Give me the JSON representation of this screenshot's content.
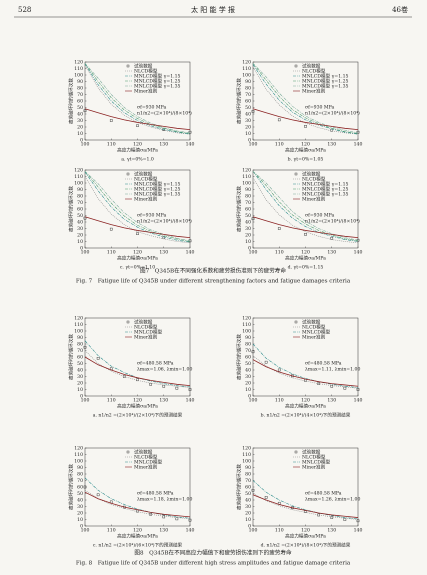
{
  "header": {
    "page": "528",
    "journal": "太 阳 能 学 报",
    "volume": "46卷"
  },
  "figure7": {
    "caption_cn": "图7　Q345B在不同强化系数和疲劳损伤准则下的疲劳寿命",
    "caption_en": "Fig. 7　Fatigue life of Q345B under different strengthening factors and fatigue damages criteria"
  },
  "figure8": {
    "caption_cn": "图8　Q345B在不同高应力幅值下和疲劳损伤准则下的疲劳寿命",
    "caption_en": "Fig. 8　Fatigue life of Q345B under different high stress amplitudes and fatigue damage criteria"
  },
  "chart_data": [
    {
      "type": "line",
      "caption": "a. γt=0%=1.0",
      "xlabel": "高应力幅值σa/MPa",
      "ylabel": "疲劳破坏时的循环次数",
      "xlim": [
        100,
        140
      ],
      "ylim": [
        0,
        120
      ],
      "xticks": [
        100,
        110,
        120,
        130,
        140
      ],
      "yticks": [
        0,
        10,
        20,
        30,
        40,
        50,
        60,
        70,
        80,
        90,
        100,
        110,
        120
      ],
      "x": [
        100,
        105,
        110,
        115,
        120,
        125,
        130,
        135,
        140
      ],
      "annotations": [
        "σf=930 MPa",
        "n1/n2=(2×10⁴)/(8×10⁴)"
      ],
      "series": [
        {
          "name": "试验数据",
          "color": "#222222",
          "style": "markers",
          "x": [
            100,
            110,
            120,
            130,
            140
          ],
          "values": [
            45,
            30,
            22,
            16,
            12
          ]
        },
        {
          "name": "NLCD模型",
          "color": "#8a8a8a",
          "style": "dotted",
          "values": [
            115,
            80,
            55,
            38,
            27,
            20,
            15,
            11,
            9
          ]
        },
        {
          "name": "MNLCD模型 γ=1.15",
          "color": "#2a8a8a",
          "style": "dashdot",
          "values": [
            117,
            85,
            60,
            42,
            30,
            22,
            16,
            12,
            9
          ]
        },
        {
          "name": "MNLCD模型 γ=1.25",
          "color": "#4a9a6a",
          "style": "dashdot",
          "values": [
            118,
            90,
            65,
            46,
            33,
            24,
            18,
            13,
            10
          ]
        },
        {
          "name": "MNLCD模型 γ=1.35",
          "color": "#7aaa9a",
          "style": "dashdot",
          "values": [
            118,
            95,
            70,
            50,
            36,
            26,
            19,
            14,
            11
          ]
        },
        {
          "name": "Miner准则",
          "color": "#8b2323",
          "style": "solid",
          "values": [
            48,
            42,
            36,
            31,
            27,
            24,
            21,
            18,
            16
          ]
        }
      ]
    },
    {
      "type": "line",
      "caption": "b. γt=0%=1.05",
      "xlabel": "高应力幅值σa/MPa",
      "ylabel": "疲劳破坏时的循环次数",
      "xlim": [
        100,
        140
      ],
      "ylim": [
        0,
        120
      ],
      "xticks": [
        100,
        110,
        120,
        130,
        140
      ],
      "yticks": [
        0,
        10,
        20,
        30,
        40,
        50,
        60,
        70,
        80,
        90,
        100,
        110,
        120
      ],
      "x": [
        100,
        105,
        110,
        115,
        120,
        125,
        130,
        135,
        140
      ],
      "annotations": [
        "σf=930 MPa",
        "n1/n2=(2×10⁴)/(8×10⁴)"
      ],
      "series": [
        {
          "name": "试验数据",
          "color": "#222222",
          "style": "markers",
          "x": [
            100,
            110,
            120,
            130,
            140
          ],
          "values": [
            44,
            31,
            21,
            15,
            12
          ]
        },
        {
          "name": "NLCD模型",
          "color": "#8a8a8a",
          "style": "dotted",
          "values": [
            112,
            78,
            54,
            37,
            26,
            19,
            14,
            11,
            9
          ]
        },
        {
          "name": "MNLCD模型 γ=1.15",
          "color": "#2a8a8a",
          "style": "dashdot",
          "values": [
            116,
            86,
            61,
            43,
            31,
            23,
            17,
            12,
            9
          ]
        },
        {
          "name": "MNLCD模型 γ=1.25",
          "color": "#4a9a6a",
          "style": "dashdot",
          "values": [
            118,
            92,
            67,
            47,
            34,
            25,
            18,
            13,
            10
          ]
        },
        {
          "name": "MNLCD模型 γ=1.35",
          "color": "#7aaa9a",
          "style": "dashdot",
          "values": [
            118,
            97,
            72,
            52,
            37,
            27,
            20,
            15,
            11
          ]
        },
        {
          "name": "Miner准则",
          "color": "#8b2323",
          "style": "solid",
          "values": [
            48,
            42,
            36,
            31,
            27,
            24,
            21,
            18,
            16
          ]
        }
      ]
    },
    {
      "type": "line",
      "caption": "c. γt=0%=1.10",
      "xlabel": "高应力幅值σa/MPa",
      "ylabel": "疲劳破坏时的循环次数",
      "xlim": [
        100,
        140
      ],
      "ylim": [
        0,
        120
      ],
      "xticks": [
        100,
        110,
        120,
        130,
        140
      ],
      "yticks": [
        0,
        10,
        20,
        30,
        40,
        50,
        60,
        70,
        80,
        90,
        100,
        110,
        120
      ],
      "x": [
        100,
        105,
        110,
        115,
        120,
        125,
        130,
        135,
        140
      ],
      "annotations": [
        "σf=930 MPa",
        "n1/n2=(2×10⁴)/(8×10⁴)"
      ],
      "series": [
        {
          "name": "试验数据",
          "color": "#222222",
          "style": "markers",
          "x": [
            100,
            110,
            120,
            130,
            140
          ],
          "values": [
            46,
            29,
            22,
            16,
            11
          ]
        },
        {
          "name": "NLCD模型",
          "color": "#8a8a8a",
          "style": "dotted",
          "values": [
            110,
            76,
            52,
            36,
            25,
            19,
            14,
            10,
            8
          ]
        },
        {
          "name": "MNLCD模型 γ=1.15",
          "color": "#2a8a8a",
          "style": "dashdot",
          "values": [
            117,
            88,
            63,
            44,
            32,
            23,
            17,
            12,
            9
          ]
        },
        {
          "name": "MNLCD模型 γ=1.25",
          "color": "#4a9a6a",
          "style": "dashdot",
          "values": [
            118,
            94,
            69,
            49,
            35,
            26,
            19,
            14,
            10
          ]
        },
        {
          "name": "MNLCD模型 γ=1.35",
          "color": "#7aaa9a",
          "style": "dashdot",
          "values": [
            118,
            99,
            75,
            54,
            39,
            28,
            21,
            15,
            11
          ]
        },
        {
          "name": "Miner准则",
          "color": "#8b2323",
          "style": "solid",
          "values": [
            48,
            42,
            36,
            31,
            27,
            24,
            21,
            18,
            16
          ]
        }
      ]
    },
    {
      "type": "line",
      "caption": "d. γt=0%=1.15",
      "xlabel": "高应力幅值σa/MPa",
      "ylabel": "疲劳破坏时的循环次数",
      "xlim": [
        100,
        140
      ],
      "ylim": [
        0,
        120
      ],
      "xticks": [
        100,
        110,
        120,
        130,
        140
      ],
      "yticks": [
        0,
        10,
        20,
        30,
        40,
        50,
        60,
        70,
        80,
        90,
        100,
        110,
        120
      ],
      "x": [
        100,
        105,
        110,
        115,
        120,
        125,
        130,
        135,
        140
      ],
      "annotations": [
        "σf=930 MPa",
        "n1/n2=(2×10⁴)/(8×10⁴)"
      ],
      "series": [
        {
          "name": "试验数据",
          "color": "#222222",
          "style": "markers",
          "x": [
            100,
            110,
            120,
            130,
            140
          ],
          "values": [
            45,
            30,
            21,
            15,
            12
          ]
        },
        {
          "name": "NLCD模型",
          "color": "#8a8a8a",
          "style": "dotted",
          "values": [
            108,
            74,
            51,
            35,
            25,
            18,
            13,
            10,
            8
          ]
        },
        {
          "name": "MNLCD模型 γ=1.15",
          "color": "#2a8a8a",
          "style": "dashdot",
          "values": [
            118,
            90,
            65,
            46,
            33,
            24,
            18,
            13,
            10
          ]
        },
        {
          "name": "MNLCD模型 γ=1.25",
          "color": "#4a9a6a",
          "style": "dashdot",
          "values": [
            118,
            96,
            71,
            51,
            37,
            27,
            20,
            14,
            11
          ]
        },
        {
          "name": "MNLCD模型 γ=1.35",
          "color": "#7aaa9a",
          "style": "dashdot",
          "values": [
            118,
            100,
            78,
            56,
            41,
            30,
            22,
            16,
            12
          ]
        },
        {
          "name": "Miner准则",
          "color": "#8b2323",
          "style": "solid",
          "values": [
            48,
            42,
            36,
            31,
            27,
            24,
            21,
            18,
            16
          ]
        }
      ]
    },
    {
      "type": "line",
      "caption": "a. n1/n2 =(2×10⁴)/(2×10⁴)下的预测结果",
      "xlabel": "高应力幅值σa/MPa",
      "ylabel": "疲劳破坏时的循环次数",
      "xlim": [
        100,
        140
      ],
      "ylim": [
        0,
        120
      ],
      "xticks": [
        100,
        110,
        120,
        130,
        140
      ],
      "yticks": [
        0,
        10,
        20,
        30,
        40,
        50,
        60,
        70,
        80,
        90,
        100,
        110,
        120
      ],
      "x": [
        100,
        105,
        110,
        115,
        120,
        125,
        130,
        135,
        140
      ],
      "annotations": [
        "σf=480.58 MPa",
        "λmax=1.06, λmin=1.00"
      ],
      "series": [
        {
          "name": "试验数据",
          "color": "#222222",
          "style": "markers",
          "x": [
            100,
            105,
            110,
            115,
            120,
            125,
            130,
            135,
            140
          ],
          "values": [
            75,
            58,
            42,
            30,
            25,
            18,
            15,
            12,
            10
          ]
        },
        {
          "name": "NLCD模型",
          "color": "#8a8a8a",
          "style": "dotted",
          "values": [
            70,
            50,
            38,
            30,
            24,
            20,
            17,
            15,
            13
          ]
        },
        {
          "name": "MNLCD模型",
          "color": "#2a8a8a",
          "style": "dashdot",
          "values": [
            85,
            62,
            46,
            36,
            28,
            23,
            19,
            16,
            14
          ]
        },
        {
          "name": "Miner准则",
          "color": "#8b2323",
          "style": "solid",
          "values": [
            60,
            48,
            40,
            33,
            28,
            24,
            21,
            18,
            16
          ]
        }
      ]
    },
    {
      "type": "line",
      "caption": "b. n1/n2 =(2×10⁴)/(4×10⁴)下的预测结果",
      "xlabel": "高应力幅值σa/MPa",
      "ylabel": "疲劳破坏时的循环次数",
      "xlim": [
        100,
        140
      ],
      "ylim": [
        0,
        120
      ],
      "xticks": [
        100,
        110,
        120,
        130,
        140
      ],
      "yticks": [
        0,
        10,
        20,
        30,
        40,
        50,
        60,
        70,
        80,
        90,
        100,
        110,
        120
      ],
      "x": [
        100,
        105,
        110,
        115,
        120,
        125,
        130,
        135,
        140
      ],
      "annotations": [
        "σf=480.58 MPa",
        "λmax=1.11, λmin=1.00"
      ],
      "series": [
        {
          "name": "试验数据",
          "color": "#222222",
          "style": "markers",
          "x": [
            100,
            105,
            110,
            115,
            120,
            125,
            130,
            135,
            140
          ],
          "values": [
            68,
            52,
            40,
            31,
            24,
            19,
            15,
            12,
            10
          ]
        },
        {
          "name": "NLCD模型",
          "color": "#8a8a8a",
          "style": "dotted",
          "values": [
            62,
            46,
            35,
            28,
            23,
            19,
            16,
            14,
            12
          ]
        },
        {
          "name": "MNLCD模型",
          "color": "#2a8a8a",
          "style": "dashdot",
          "values": [
            80,
            58,
            44,
            34,
            27,
            22,
            18,
            15,
            13
          ]
        },
        {
          "name": "Miner准则",
          "color": "#8b2323",
          "style": "solid",
          "values": [
            56,
            45,
            37,
            31,
            26,
            22,
            19,
            17,
            15
          ]
        }
      ]
    },
    {
      "type": "line",
      "caption": "c. n1/n2 =(2×10⁴)/(6×10⁴)下的预测结果",
      "xlabel": "高应力幅值σa/MPa",
      "ylabel": "疲劳破坏时的循环次数",
      "xlim": [
        100,
        140
      ],
      "ylim": [
        0,
        120
      ],
      "xticks": [
        100,
        110,
        120,
        130,
        140
      ],
      "yticks": [
        0,
        10,
        20,
        30,
        40,
        50,
        60,
        70,
        80,
        90,
        100,
        110,
        120
      ],
      "x": [
        100,
        105,
        110,
        115,
        120,
        125,
        130,
        135,
        140
      ],
      "annotations": [
        "σf=480.58 MPa",
        "λmax=1.18, λmin=1.00"
      ],
      "series": [
        {
          "name": "试验数据",
          "color": "#222222",
          "style": "markers",
          "x": [
            100,
            105,
            110,
            115,
            120,
            125,
            130,
            135,
            140
          ],
          "values": [
            60,
            48,
            37,
            29,
            23,
            18,
            14,
            11,
            9
          ]
        },
        {
          "name": "NLCD模型",
          "color": "#8a8a8a",
          "style": "dotted",
          "values": [
            55,
            42,
            33,
            27,
            22,
            18,
            15,
            13,
            11
          ]
        },
        {
          "name": "MNLCD模型",
          "color": "#2a8a8a",
          "style": "dashdot",
          "values": [
            74,
            55,
            42,
            33,
            26,
            21,
            17,
            14,
            12
          ]
        },
        {
          "name": "Miner准则",
          "color": "#8b2323",
          "style": "solid",
          "values": [
            52,
            42,
            35,
            29,
            25,
            21,
            18,
            16,
            14
          ]
        }
      ]
    },
    {
      "type": "line",
      "caption": "d. n1/n2 =(2×10⁴)/(8×10⁴)下的预测结果",
      "xlabel": "高应力幅值σa/MPa",
      "ylabel": "疲劳破坏时的循环次数",
      "xlim": [
        100,
        140
      ],
      "ylim": [
        0,
        120
      ],
      "xticks": [
        100,
        110,
        120,
        130,
        140
      ],
      "yticks": [
        0,
        10,
        20,
        30,
        40,
        50,
        60,
        70,
        80,
        90,
        100,
        110,
        120
      ],
      "x": [
        100,
        105,
        110,
        115,
        120,
        125,
        130,
        135,
        140
      ],
      "annotations": [
        "σf=480.58 MPa",
        "λmax=1.26, λmin=1.00"
      ],
      "series": [
        {
          "name": "试验数据",
          "color": "#222222",
          "style": "markers",
          "x": [
            100,
            105,
            110,
            115,
            120,
            125,
            130,
            135,
            140
          ],
          "values": [
            55,
            44,
            35,
            28,
            22,
            17,
            13,
            10,
            8
          ]
        },
        {
          "name": "NLCD模型",
          "color": "#8a8a8a",
          "style": "dotted",
          "values": [
            50,
            39,
            31,
            25,
            21,
            17,
            14,
            12,
            10
          ]
        },
        {
          "name": "MNLCD模型",
          "color": "#2a8a8a",
          "style": "dashdot",
          "values": [
            70,
            52,
            40,
            31,
            25,
            20,
            16,
            13,
            11
          ]
        },
        {
          "name": "Miner准则",
          "color": "#8b2323",
          "style": "solid",
          "values": [
            48,
            40,
            33,
            28,
            24,
            20,
            17,
            15,
            13
          ]
        }
      ]
    }
  ]
}
